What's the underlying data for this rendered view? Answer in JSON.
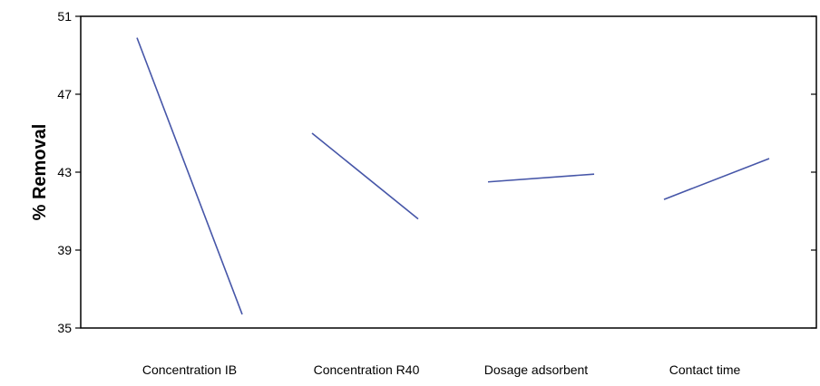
{
  "chart_data": {
    "type": "line",
    "title": "",
    "xlabel": "",
    "ylabel": "% Removal",
    "ylim": [
      35,
      51
    ],
    "yticks": [
      35,
      39,
      43,
      47,
      51
    ],
    "grid": false,
    "legend": "none",
    "line_color": "#4656a8",
    "factors": [
      {
        "name": "Concentration IB",
        "start": 49.9,
        "end": 35.7
      },
      {
        "name": "Concentration R40",
        "start": 45.0,
        "end": 40.6
      },
      {
        "name": "Dosage adsorbent",
        "start": 42.5,
        "end": 42.9
      },
      {
        "name": "Contact time",
        "start": 41.6,
        "end": 43.7
      }
    ]
  }
}
